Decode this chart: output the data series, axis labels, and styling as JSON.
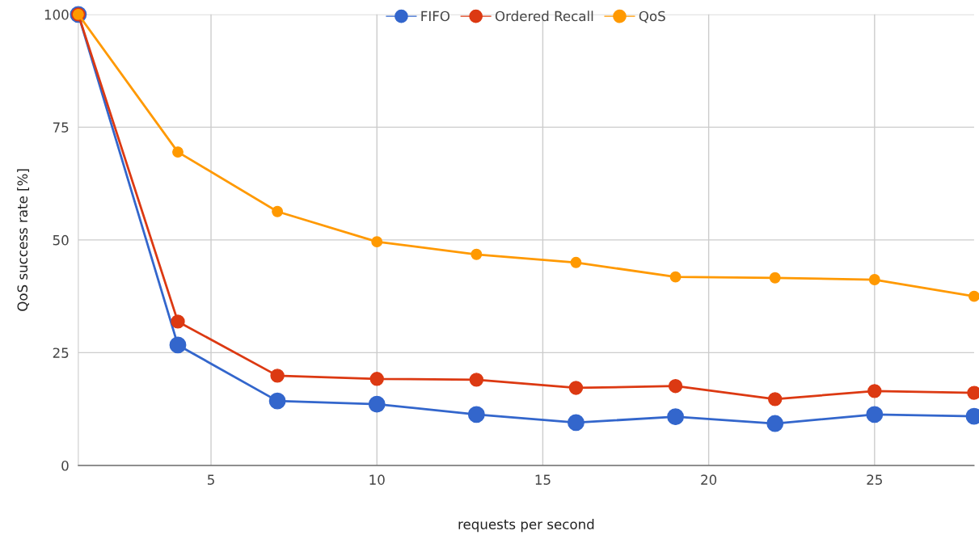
{
  "chart_data": {
    "type": "line",
    "xlabel": "requests per second",
    "ylabel": "QoS success rate [%]",
    "x": [
      1,
      4,
      7,
      10,
      13,
      16,
      19,
      22,
      25,
      28
    ],
    "series": [
      {
        "name": "FIFO",
        "color": "#3366cc",
        "values": [
          100,
          26.7,
          14.3,
          13.6,
          11.3,
          9.5,
          10.8,
          9.3,
          11.3,
          10.9
        ]
      },
      {
        "name": "Ordered Recall",
        "color": "#dc3912",
        "values": [
          100,
          31.9,
          19.9,
          19.2,
          19.0,
          17.2,
          17.6,
          14.7,
          16.5,
          16.1
        ]
      },
      {
        "name": "QoS",
        "color": "#ff9900",
        "values": [
          100,
          69.5,
          56.3,
          49.6,
          46.8,
          45.0,
          41.8,
          41.6,
          41.2,
          37.5
        ]
      }
    ],
    "xlim": [
      1,
      28
    ],
    "xticks": [
      5,
      10,
      15,
      20,
      25
    ],
    "ylim": [
      0,
      100
    ],
    "yticks": [
      0,
      25,
      50,
      75,
      100
    ],
    "grid": true,
    "legend": "top",
    "marker": "circle",
    "line_style": "solid"
  }
}
